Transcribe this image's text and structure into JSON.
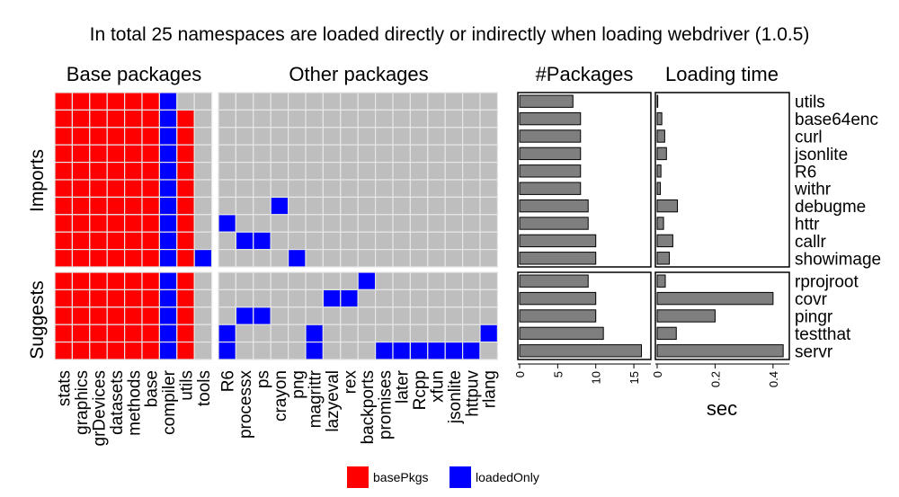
{
  "title": "In total 25 namespaces are loaded directly or indirectly when loading webdriver (1.0.5)",
  "colors": {
    "basePkgs": "#ff0000",
    "loadedOnly": "#0000ff",
    "empty": "#bebebe",
    "bar": "#7f7f7f"
  },
  "chart_data": [
    {
      "type": "heatmap",
      "panels": [
        "Base packages",
        "Other packages"
      ],
      "row_groups": [
        "Imports",
        "Suggests"
      ],
      "base_columns": [
        "stats",
        "graphics",
        "grDevices",
        "datasets",
        "methods",
        "base",
        "compiler",
        "utils",
        "tools"
      ],
      "other_columns": [
        "R6",
        "processx",
        "ps",
        "crayon",
        "png",
        "magrittr",
        "lazyeval",
        "rex",
        "backports",
        "promises",
        "later",
        "Rcpp",
        "xfun",
        "jsonlite",
        "httpuv",
        "rlang"
      ],
      "rows": [
        "utils",
        "base64enc",
        "curl",
        "jsonlite",
        "R6",
        "withr",
        "debugme",
        "httr",
        "callr",
        "showimage",
        "rprojroot",
        "covr",
        "pingr",
        "testthat",
        "servr"
      ],
      "row_group_of": [
        "Imports",
        "Imports",
        "Imports",
        "Imports",
        "Imports",
        "Imports",
        "Imports",
        "Imports",
        "Imports",
        "Imports",
        "Suggests",
        "Suggests",
        "Suggests",
        "Suggests",
        "Suggests"
      ],
      "base_cells": [
        "RRRRRRB--",
        "RRRRRRBR-",
        "RRRRRRBR-",
        "RRRRRRBR-",
        "RRRRRRBR-",
        "RRRRRRBR-",
        "RRRRRRBR-",
        "RRRRRRBR-",
        "RRRRRRBR-",
        "RRRRRRBRB",
        "RRRRRRBR-",
        "RRRRRRBR-",
        "RRRRRRBR-",
        "RRRRRRBR-",
        "RRRRRRBR-"
      ],
      "other_cells": [
        "----------------",
        "----------------",
        "----------------",
        "----------------",
        "----------------",
        "----------------",
        "---B------------",
        "B---------------",
        "-BB-------------",
        "----B-----------",
        "--------B-------",
        "------BB--------",
        "-BB-------------",
        "B----B---------B",
        "B----B---BBBBBB-"
      ],
      "legend": [
        {
          "key": "basePkgs",
          "label": "basePkgs"
        },
        {
          "key": "loadedOnly",
          "label": "loadedOnly"
        }
      ]
    },
    {
      "type": "bar",
      "orientation": "horizontal",
      "title": "#Packages",
      "categories": [
        "utils",
        "base64enc",
        "curl",
        "jsonlite",
        "R6",
        "withr",
        "debugme",
        "httr",
        "callr",
        "showimage",
        "rprojroot",
        "covr",
        "pingr",
        "testthat",
        "servr"
      ],
      "values": [
        7,
        8,
        8,
        8,
        8,
        8,
        9,
        9,
        10,
        10,
        9,
        10,
        10,
        11,
        16
      ],
      "xlim": [
        0,
        17
      ],
      "ticks": [
        0,
        5,
        10,
        15
      ],
      "tick_labels": [
        "0",
        "5",
        "10",
        "15"
      ],
      "xlabel": ""
    },
    {
      "type": "bar",
      "orientation": "horizontal",
      "title": "Loading time",
      "categories": [
        "utils",
        "base64enc",
        "curl",
        "jsonlite",
        "R6",
        "withr",
        "debugme",
        "httr",
        "callr",
        "showimage",
        "rprojroot",
        "covr",
        "pingr",
        "testthat",
        "servr"
      ],
      "values": [
        0.002,
        0.016,
        0.026,
        0.032,
        0.013,
        0.011,
        0.07,
        0.022,
        0.054,
        0.042,
        0.028,
        0.4,
        0.2,
        0.066,
        0.435
      ],
      "xlim": [
        0,
        0.45
      ],
      "ticks": [
        0,
        0.2,
        0.4
      ],
      "tick_labels": [
        "0",
        "0.2",
        "0.4"
      ],
      "xlabel": "sec"
    }
  ]
}
